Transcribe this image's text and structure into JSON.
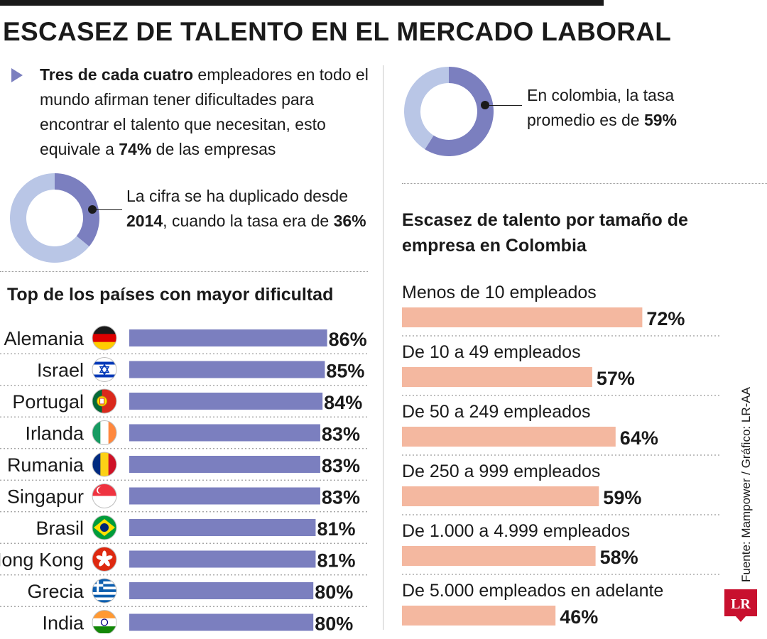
{
  "title": "ESCASEZ DE TALENTO EN EL MERCADO LABORAL",
  "intro": {
    "bold_lead": "Tres de cada cuatro",
    "text_a": " empleadores en todo el mundo afirman tener dificultades para encontrar el talento que necesitan, esto equivale a ",
    "bold_value": "74%",
    "text_b": " de las empresas"
  },
  "notes": {
    "note_2014": {
      "text_a": "La cifra se ha duplicado desde ",
      "bold_year": "2014",
      "text_b": ", cuando la tasa era de ",
      "bold_value": "36%"
    },
    "note_colombia": {
      "text_a": "En colombia, la tasa promedio es de ",
      "bold_value": "59%"
    }
  },
  "source": "Fuente: Mampower / Gráfico: LR-AA",
  "logo_text": "LR",
  "colors": {
    "country_bar": "#7b7fbf",
    "company_bar": "#f4b8a0",
    "donut_fill": "#7b7fbf",
    "donut_rest": "#b9c6e6"
  },
  "chart_data": [
    {
      "type": "pie",
      "variant": "donut",
      "slices": [
        {
          "label": "",
          "value": 36
        },
        {
          "label": "",
          "value": 64
        }
      ]
    },
    {
      "type": "pie",
      "variant": "donut",
      "slices": [
        {
          "label": "",
          "value": 59
        },
        {
          "label": "",
          "value": 41
        }
      ]
    },
    {
      "type": "bar",
      "orientation": "horizontal",
      "title": "Top de los países con mayor dificultad",
      "categories": [
        "Alemania",
        "Israel",
        "Portugal",
        "Irlanda",
        "Rumania",
        "Singapur",
        "Brasil",
        "Hong Kong",
        "Grecia",
        "India"
      ],
      "values": [
        86,
        85,
        84,
        83,
        83,
        83,
        81,
        81,
        80,
        80
      ],
      "value_labels": [
        "86%",
        "85%",
        "84%",
        "83%",
        "83%",
        "83%",
        "81%",
        "81%",
        "80%",
        "80%"
      ],
      "flags": [
        "germany-flag-icon",
        "israel-flag-icon",
        "portugal-flag-icon",
        "ireland-flag-icon",
        "romania-flag-icon",
        "singapore-flag-icon",
        "brazil-flag-icon",
        "hong-kong-flag-icon",
        "greece-flag-icon",
        "india-flag-icon"
      ],
      "xlim": [
        0,
        100
      ]
    },
    {
      "type": "bar",
      "orientation": "horizontal",
      "title": "Escasez de talento por tamaño de empresa en Colombia",
      "categories": [
        "Menos de 10 empleados",
        "De 10 a 49 empleados",
        "De 50 a 249 empleados",
        "De 250 a 999 empleados",
        "De 1.000 a 4.999 empleados",
        "De 5.000 empleados en adelante"
      ],
      "values": [
        72,
        57,
        64,
        59,
        58,
        46
      ],
      "value_labels": [
        "72%",
        "57%",
        "64%",
        "59%",
        "58%",
        "46%"
      ],
      "xlim": [
        0,
        100
      ]
    }
  ]
}
